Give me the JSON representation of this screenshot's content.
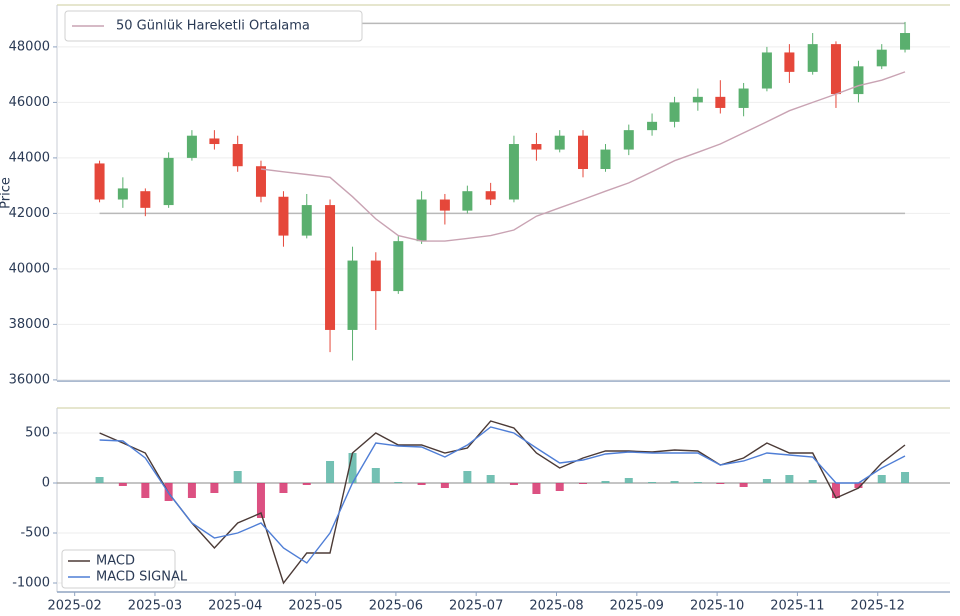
{
  "chart_data": [
    {
      "type": "candlestick",
      "y_label": "Price",
      "x": [
        0.31,
        0.6,
        0.88,
        1.17,
        1.46,
        1.74,
        2.03,
        2.32,
        2.6,
        2.89,
        3.18,
        3.46,
        3.75,
        4.03,
        4.32,
        4.61,
        4.89,
        5.18,
        5.47,
        5.75,
        6.04,
        6.33,
        6.61,
        6.9,
        7.19,
        7.47,
        7.76,
        8.04,
        8.33,
        8.62,
        8.9,
        9.19,
        9.48,
        9.76,
        10.05,
        10.34
      ],
      "open": [
        43800,
        42500,
        42800,
        42300,
        44000,
        44700,
        44500,
        43700,
        42600,
        41200,
        42300,
        37800,
        40300,
        39200,
        41000,
        42500,
        42100,
        42800,
        42500,
        44500,
        44300,
        44800,
        43600,
        44300,
        45000,
        45300,
        46000,
        46200,
        45800,
        46500,
        47800,
        47100,
        48100,
        46300,
        47300,
        47900
      ],
      "high": [
        43900,
        43300,
        42900,
        44200,
        45000,
        45000,
        44800,
        43900,
        42800,
        42700,
        42500,
        40800,
        40600,
        41200,
        42800,
        42700,
        43000,
        43100,
        44800,
        44900,
        45000,
        45000,
        44500,
        45200,
        45600,
        46200,
        46500,
        46800,
        46700,
        48000,
        48100,
        48500,
        48200,
        47500,
        48100,
        48900
      ],
      "low": [
        42400,
        42200,
        41900,
        42200,
        43900,
        44300,
        43500,
        42400,
        40800,
        41100,
        37000,
        36700,
        37800,
        39100,
        40900,
        41600,
        42000,
        42300,
        42400,
        43900,
        44200,
        43300,
        43500,
        44100,
        44800,
        45100,
        45700,
        45600,
        45500,
        46400,
        46700,
        47000,
        45800,
        46000,
        47200,
        47800
      ],
      "close": [
        42500,
        42900,
        42200,
        44000,
        44800,
        44500,
        43700,
        42600,
        41200,
        42300,
        37800,
        40300,
        39200,
        41000,
        42500,
        42100,
        42800,
        42500,
        44500,
        44300,
        44800,
        43600,
        44300,
        45000,
        45300,
        46000,
        46200,
        45800,
        46500,
        47800,
        47100,
        48100,
        46300,
        47300,
        47900,
        48500
      ],
      "up_color": "#5aaf6e",
      "down_color": "#e5473a",
      "series": [
        {
          "name": "50 Günlük Hareketli Ortalama",
          "color": "#c9a3b3",
          "values": [
            null,
            null,
            null,
            null,
            null,
            null,
            null,
            43600,
            43500,
            43400,
            43300,
            42600,
            41800,
            41200,
            41000,
            41000,
            41100,
            41200,
            41400,
            41900,
            42200,
            42500,
            42800,
            43100,
            43500,
            43900,
            44200,
            44500,
            44900,
            45300,
            45700,
            46000,
            46300,
            46600,
            46800,
            47100
          ]
        }
      ],
      "hlines": [
        48850,
        42000
      ],
      "hline_color": "#b9b9b9",
      "xlim": [
        -0.22,
        10.9
      ],
      "ylim": [
        35960,
        49510
      ],
      "yticks": [
        36000,
        38000,
        40000,
        42000,
        44000,
        46000,
        48000
      ],
      "grid": true,
      "legend": "upper left"
    },
    {
      "type": "line",
      "x": [
        0.31,
        0.6,
        0.88,
        1.17,
        1.46,
        1.74,
        2.03,
        2.32,
        2.6,
        2.89,
        3.18,
        3.46,
        3.75,
        4.03,
        4.32,
        4.61,
        4.89,
        5.18,
        5.47,
        5.75,
        6.04,
        6.33,
        6.61,
        6.9,
        7.19,
        7.47,
        7.76,
        8.04,
        8.33,
        8.62,
        8.9,
        9.19,
        9.48,
        9.76,
        10.05,
        10.34
      ],
      "series": [
        {
          "name": "MACD",
          "color": "#4b3a36",
          "values": [
            500,
            400,
            300,
            -100,
            -400,
            -650,
            -400,
            -300,
            -1000,
            -700,
            -700,
            300,
            500,
            380,
            380,
            300,
            350,
            620,
            550,
            300,
            150,
            250,
            320,
            320,
            310,
            330,
            320,
            180,
            250,
            400,
            300,
            300,
            -150,
            -50,
            200,
            380
          ]
        },
        {
          "name": "MACD SIGNAL",
          "color": "#4f7ed6",
          "values": [
            430,
            420,
            250,
            -100,
            -400,
            -550,
            -500,
            -400,
            -650,
            -800,
            -500,
            0,
            400,
            370,
            360,
            260,
            380,
            560,
            500,
            350,
            200,
            230,
            290,
            310,
            300,
            300,
            300,
            180,
            220,
            300,
            280,
            260,
            0,
            0,
            150,
            270
          ]
        }
      ],
      "histogram": [
        60,
        -30,
        -150,
        -180,
        -150,
        -100,
        120,
        -350,
        -100,
        -20,
        220,
        300,
        150,
        10,
        -20,
        -50,
        120,
        80,
        -20,
        -110,
        -80,
        -10,
        20,
        50,
        10,
        20,
        10,
        -10,
        -40,
        40,
        80,
        30,
        -150,
        -50,
        80,
        110
      ],
      "positive_color": "#5bb5a6",
      "negative_color": "#d6336c",
      "xlim": [
        -0.22,
        10.9
      ],
      "ylim": [
        -1090,
        750
      ],
      "yticks": [
        -1000,
        -500,
        0,
        500
      ],
      "xticks": [
        {
          "value": 0,
          "label": "2025-02"
        },
        {
          "value": 1,
          "label": "2025-03"
        },
        {
          "value": 2,
          "label": "2025-04"
        },
        {
          "value": 3,
          "label": "2025-05"
        },
        {
          "value": 4,
          "label": "2025-06"
        },
        {
          "value": 5,
          "label": "2025-07"
        },
        {
          "value": 6,
          "label": "2025-08"
        },
        {
          "value": 7,
          "label": "2025-09"
        },
        {
          "value": 8,
          "label": "2025-10"
        },
        {
          "value": 9,
          "label": "2025-11"
        },
        {
          "value": 10,
          "label": "2025-12"
        }
      ],
      "grid": true,
      "legend": "lower left"
    }
  ]
}
